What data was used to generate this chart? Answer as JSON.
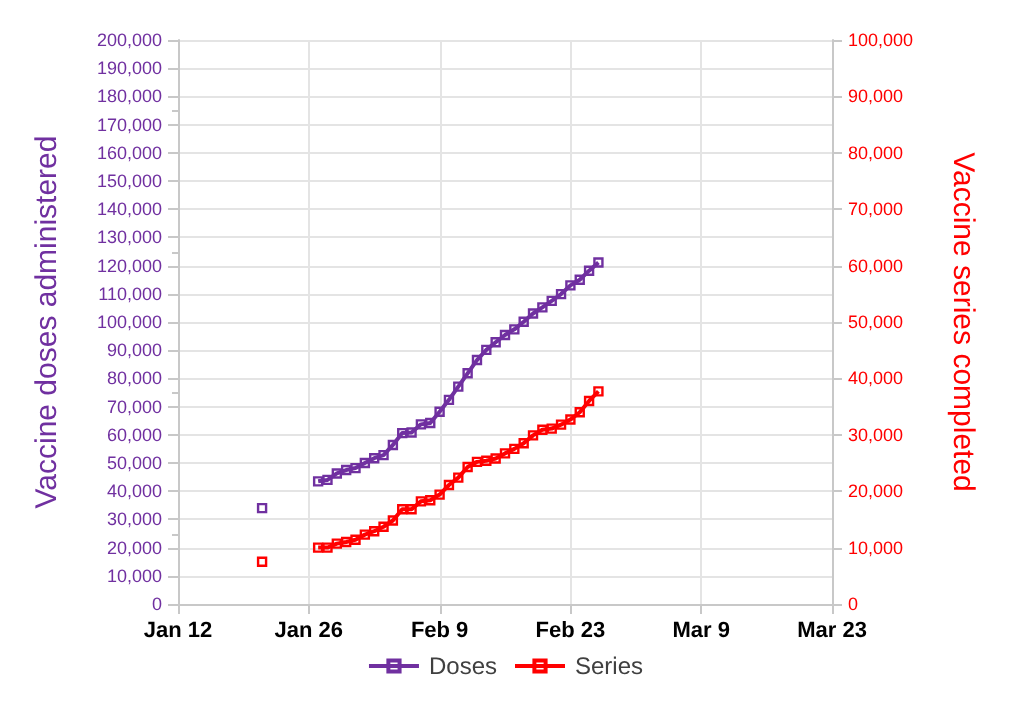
{
  "chart_data": {
    "type": "line",
    "xlabel": null,
    "ylabel": "Vaccine doses administered",
    "y2label": "Vaccine series completed",
    "x": [
      "--01-21",
      "--01-22",
      "--01-23",
      "--01-24",
      "--01-25",
      "--01-26",
      "--01-27",
      "--01-28",
      "--01-29",
      "--01-30",
      "--01-31",
      "--02-01",
      "--02-02",
      "--02-03",
      "--02-04",
      "--02-05",
      "--02-06",
      "--02-07",
      "--02-08",
      "--02-09",
      "--02-10",
      "--02-11",
      "--02-12",
      "--02-13",
      "--02-14",
      "--02-15",
      "--02-16",
      "--02-17",
      "--02-18",
      "--02-19",
      "--02-20",
      "--02-21",
      "--02-22",
      "--02-23",
      "--02-24",
      "--02-25",
      "--02-26"
    ],
    "series": [
      {
        "name": "Doses",
        "color": "#7030a0",
        "values": [
          34000,
          null,
          null,
          null,
          null,
          null,
          43500,
          44000,
          46300,
          47500,
          48200,
          50000,
          51700,
          52800,
          56400,
          60600,
          60800,
          63700,
          64200,
          68200,
          72400,
          77100,
          81800,
          86500,
          90100,
          92800,
          95400,
          97400,
          100100,
          103000,
          105200,
          107500,
          109900,
          113000,
          115000,
          118200,
          121100
        ]
      },
      {
        "name": "Series",
        "color": "#ff0000",
        "axis": "y2",
        "values": [
          7500,
          null,
          null,
          null,
          null,
          null,
          10000,
          10000,
          10700,
          11000,
          11400,
          12300,
          12900,
          13700,
          14800,
          16800,
          16800,
          18200,
          18400,
          19400,
          21100,
          22400,
          24300,
          25200,
          25400,
          25800,
          26700,
          27500,
          28500,
          29900,
          30900,
          31100,
          31800,
          32700,
          34000,
          36000,
          37700
        ]
      }
    ],
    "xlim": [
      "--01-12",
      "--03-23"
    ],
    "xticks": [
      {
        "value": "--01-12",
        "label": "Jan 12"
      },
      {
        "value": "--01-26",
        "label": "Jan 26"
      },
      {
        "value": "--02-09",
        "label": "Feb 9"
      },
      {
        "value": "--02-23",
        "label": "Feb 23"
      },
      {
        "value": "--03-09",
        "label": "Mar 9"
      },
      {
        "value": "--03-23",
        "label": "Mar 23"
      }
    ],
    "ylim": [
      0,
      200000
    ],
    "yticks": [
      0,
      {
        "value": 10000,
        "label": "10,000"
      },
      {
        "value": 20000,
        "label": "20,000"
      },
      {
        "value": 30000,
        "label": "30,000"
      },
      {
        "value": 40000,
        "label": "40,000"
      },
      {
        "value": 50000,
        "label": "50,000"
      },
      {
        "value": 60000,
        "label": "60,000"
      },
      {
        "value": 70000,
        "label": "70,000"
      },
      {
        "value": 80000,
        "label": "80,000"
      },
      {
        "value": 90000,
        "label": "90,000"
      },
      {
        "value": 100000,
        "label": "100,000"
      },
      {
        "value": 110000,
        "label": "110,000"
      },
      {
        "value": 120000,
        "label": "120,000"
      },
      {
        "value": 130000,
        "label": "130,000"
      },
      {
        "value": 140000,
        "label": "140,000"
      },
      {
        "value": 150000,
        "label": "150,000"
      },
      {
        "value": 160000,
        "label": "160,000"
      },
      {
        "value": 170000,
        "label": "170,000"
      },
      {
        "value": 180000,
        "label": "180,000"
      },
      {
        "value": 190000,
        "label": "190,000"
      },
      {
        "value": 200000,
        "label": "200,000"
      }
    ],
    "y2lim": [
      0,
      100000
    ],
    "y2ticks": [
      0,
      {
        "value": 10000,
        "label": "10,000"
      },
      {
        "value": 20000,
        "label": "20,000"
      },
      {
        "value": 30000,
        "label": "30,000"
      },
      {
        "value": 40000,
        "label": "40,000"
      },
      {
        "value": 50000,
        "label": "50,000"
      },
      {
        "value": 60000,
        "label": "60,000"
      },
      {
        "value": 70000,
        "label": "70,000"
      },
      {
        "value": 80000,
        "label": "80,000"
      },
      {
        "value": 90000,
        "label": "90,000"
      },
      {
        "value": 100000,
        "label": "100,000"
      }
    ],
    "grid": true,
    "legend": "bottom",
    "marker": "square",
    "line_style": "solid"
  }
}
